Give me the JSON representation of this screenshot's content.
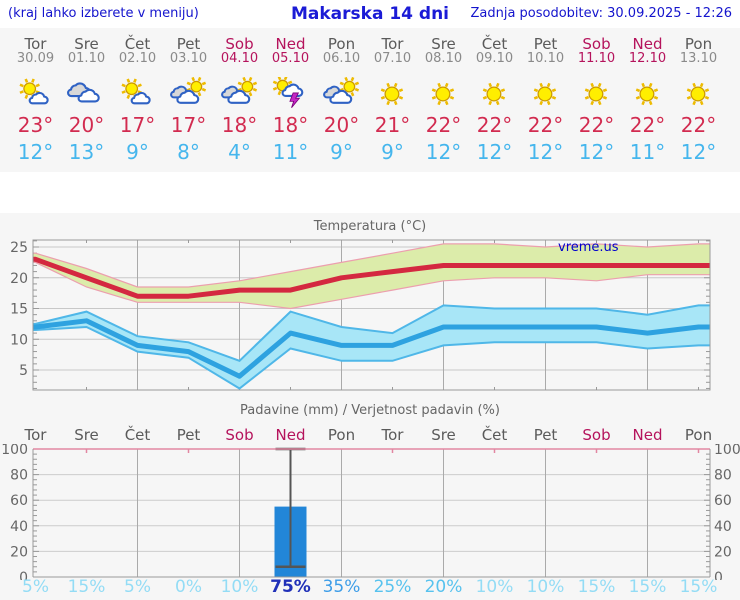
{
  "header": {
    "menu_note": "(kraj lahko izberete v meniju)",
    "title": "Makarska 14 dni",
    "last_update": "Zadnja posodobitev: 30.09.2025 - 12:26"
  },
  "watermark": "vreme.us",
  "colors": {
    "header_blue": "#1414cd",
    "weekend_crimson": "#b5135c",
    "high_red": "#d22b50",
    "low_blue": "#45b6ed",
    "grid_major": "#aaaaaa",
    "grid_minor": "#cccccc",
    "axis_border": "#999999",
    "pink_axis": "#e287a2",
    "prob": {
      "high": "#2030b8",
      "mid": "#3d9de8",
      "midlow": "#57c2ee",
      "low": "#93dcf5"
    }
  },
  "days": [
    {
      "name": "Tor",
      "date": "30.09",
      "weekend": false,
      "icon": "sun-small-cloud",
      "high": "23°",
      "low": "12°",
      "precip_prob": "5%"
    },
    {
      "name": "Sre",
      "date": "01.10",
      "weekend": false,
      "icon": "clouds",
      "high": "20°",
      "low": "13°",
      "precip_prob": "15%"
    },
    {
      "name": "Čet",
      "date": "02.10",
      "weekend": false,
      "icon": "sun-small-cloud",
      "high": "17°",
      "low": "9°",
      "precip_prob": "5%"
    },
    {
      "name": "Pet",
      "date": "03.10",
      "weekend": false,
      "icon": "cloud-sun",
      "high": "17°",
      "low": "8°",
      "precip_prob": "0%"
    },
    {
      "name": "Sob",
      "date": "04.10",
      "weekend": true,
      "icon": "cloud-sun",
      "high": "18°",
      "low": "4°",
      "precip_prob": "10%"
    },
    {
      "name": "Ned",
      "date": "05.10",
      "weekend": true,
      "icon": "thunder",
      "high": "18°",
      "low": "11°",
      "precip_prob": "75%"
    },
    {
      "name": "Pon",
      "date": "06.10",
      "weekend": false,
      "icon": "cloud-sun",
      "high": "20°",
      "low": "9°",
      "precip_prob": "35%"
    },
    {
      "name": "Tor",
      "date": "07.10",
      "weekend": false,
      "icon": "sun",
      "high": "21°",
      "low": "9°",
      "precip_prob": "25%"
    },
    {
      "name": "Sre",
      "date": "08.10",
      "weekend": false,
      "icon": "sun",
      "high": "22°",
      "low": "12°",
      "precip_prob": "20%"
    },
    {
      "name": "Čet",
      "date": "09.10",
      "weekend": false,
      "icon": "sun",
      "high": "22°",
      "low": "12°",
      "precip_prob": "10%"
    },
    {
      "name": "Pet",
      "date": "10.10",
      "weekend": false,
      "icon": "sun",
      "high": "22°",
      "low": "12°",
      "precip_prob": "10%"
    },
    {
      "name": "Sob",
      "date": "11.10",
      "weekend": true,
      "icon": "sun",
      "high": "22°",
      "low": "12°",
      "precip_prob": "15%"
    },
    {
      "name": "Ned",
      "date": "12.10",
      "weekend": true,
      "icon": "sun",
      "high": "22°",
      "low": "11°",
      "precip_prob": "15%"
    },
    {
      "name": "Pon",
      "date": "13.10",
      "weekend": false,
      "icon": "sun",
      "high": "22°",
      "low": "12°",
      "precip_prob": "15%"
    }
  ],
  "chart_data": [
    {
      "type": "line",
      "title": "Temperatura (°C)",
      "categories": [
        "Tor 30.09",
        "Sre 01.10",
        "Čet 02.10",
        "Pet 03.10",
        "Sob 04.10",
        "Ned 05.10",
        "Pon 06.10",
        "Tor 07.10",
        "Sre 08.10",
        "Čet 09.10",
        "Pet 10.10",
        "Sob 11.10",
        "Ned 12.10",
        "Pon 13.10"
      ],
      "ylim": [
        1.75,
        26.1
      ],
      "yticks": [
        5,
        10,
        15,
        20,
        25
      ],
      "grid": true,
      "series": [
        {
          "name": "max-temperature",
          "color": "#d42840",
          "values": [
            23,
            20,
            17,
            17,
            18,
            18,
            20,
            21,
            22,
            22,
            22,
            22,
            22,
            22
          ]
        },
        {
          "name": "max-band-upper",
          "color": "#ec9fae",
          "values": [
            24,
            21.5,
            18.5,
            18.5,
            19.5,
            21,
            22.5,
            24,
            25.5,
            25.5,
            25,
            25.5,
            25,
            25.5
          ]
        },
        {
          "name": "max-band-lower",
          "color": "#ec9fae",
          "values": [
            22.5,
            18.5,
            16,
            16,
            16,
            15,
            16.5,
            18,
            19.5,
            20,
            20,
            19.5,
            20.5,
            20.5
          ]
        },
        {
          "name": "min-temperature",
          "color": "#2ea2e0",
          "values": [
            12,
            13,
            9,
            8,
            4,
            11,
            9,
            9,
            12,
            12,
            12,
            12,
            11,
            12
          ]
        },
        {
          "name": "min-band-upper",
          "color": "#4fb7e8",
          "values": [
            12.5,
            14.5,
            10.5,
            9.5,
            6.5,
            14.5,
            12,
            11,
            15.5,
            15,
            15,
            15,
            14,
            15.5
          ]
        },
        {
          "name": "min-band-lower",
          "color": "#4fb7e8",
          "values": [
            11.5,
            12,
            8,
            7,
            2,
            8.5,
            6.5,
            6.5,
            9,
            9.5,
            9.5,
            9.5,
            8.5,
            9
          ]
        }
      ],
      "band_fills": {
        "max": "#dcecaa",
        "min": "#a8e6f7"
      },
      "watermark": "vreme.us"
    },
    {
      "type": "bar",
      "title": "Padavine (mm) / Verjetnost padavin (%)",
      "categories": [
        "Tor",
        "Sre",
        "Čet",
        "Pet",
        "Sob",
        "Ned",
        "Pon",
        "Tor",
        "Sre",
        "Čet",
        "Pet",
        "Sob",
        "Ned",
        "Pon"
      ],
      "ylim": [
        0,
        100
      ],
      "yticks": [
        0,
        20,
        40,
        60,
        80,
        100
      ],
      "precipitation_mm": [
        0,
        0,
        0,
        0,
        0,
        55,
        0,
        0,
        0,
        0,
        0,
        0,
        0,
        0
      ],
      "whisker": {
        "day_index": 5,
        "low": 8,
        "high": 100
      },
      "bar_color": "#2286d8",
      "probabilities_pct": [
        5,
        15,
        5,
        0,
        10,
        75,
        35,
        25,
        20,
        10,
        10,
        15,
        15,
        15
      ]
    }
  ]
}
